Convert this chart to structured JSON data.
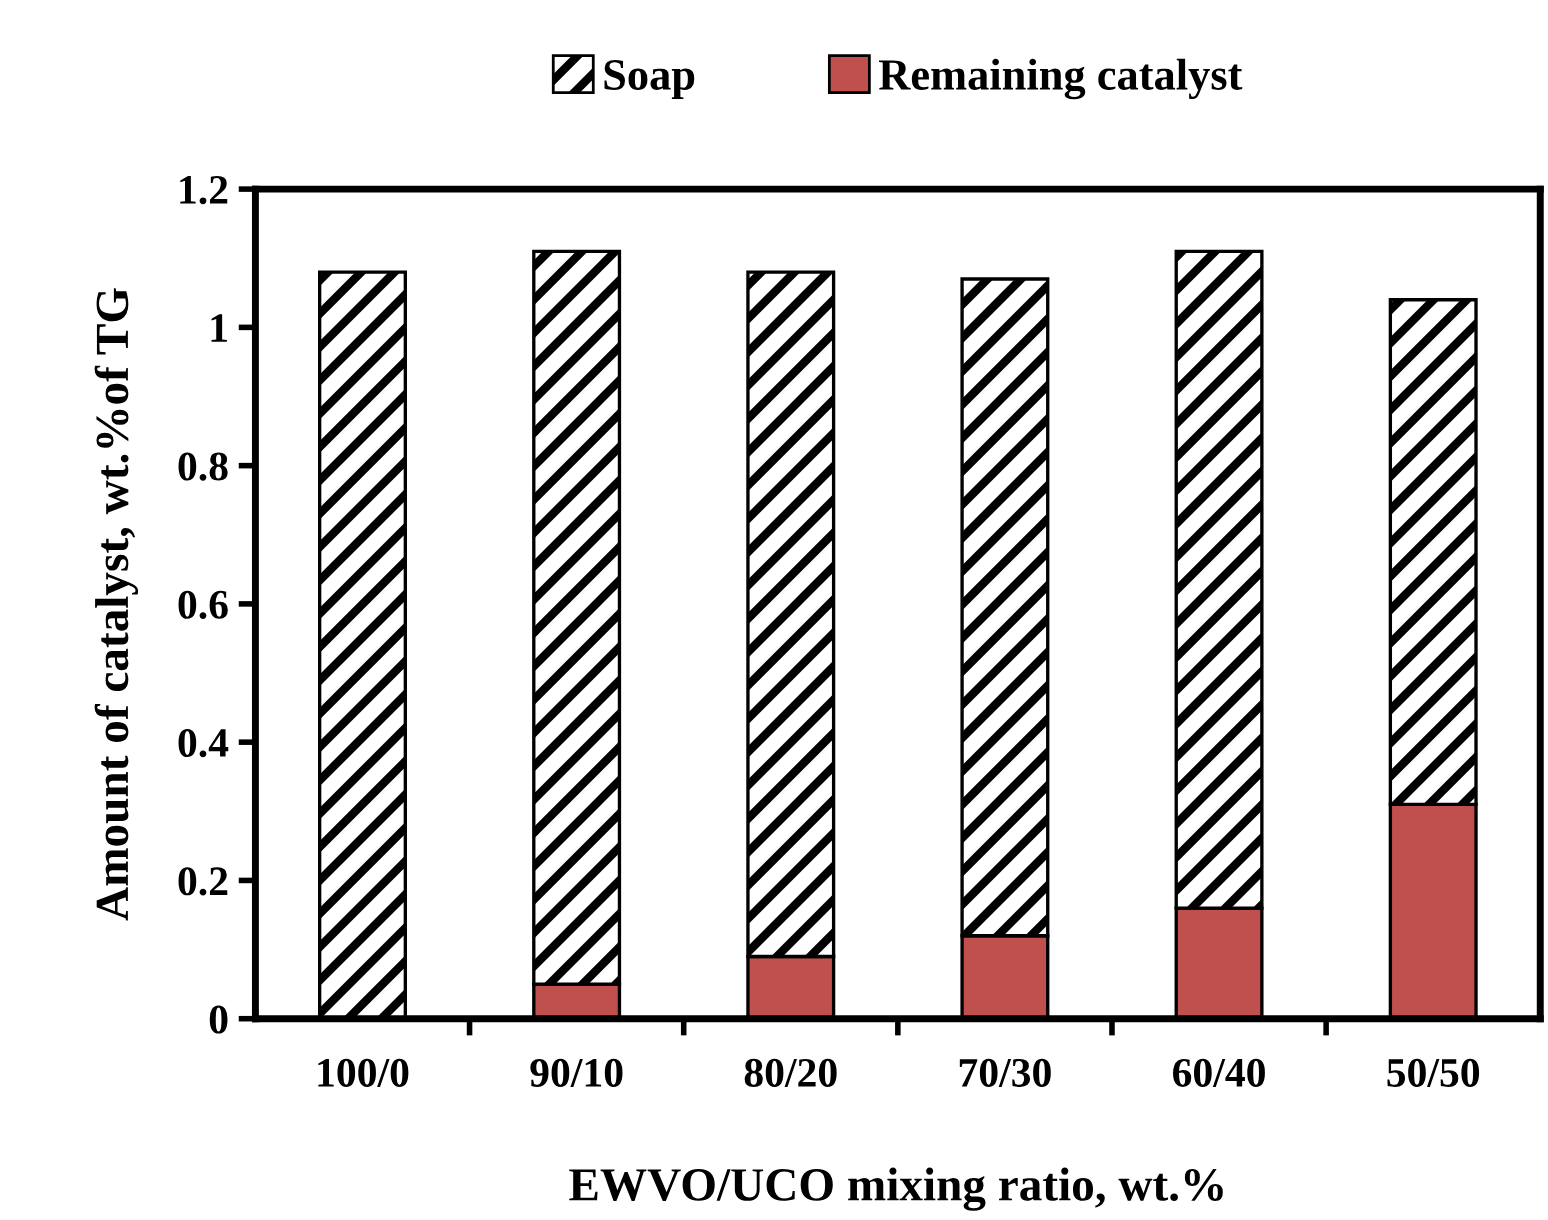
{
  "chart_data": {
    "type": "bar",
    "stacked": true,
    "xlabel": "EWVO/UCO mixing ratio, wt.%",
    "ylabel": "Amount of catalyst, wt.%of TG",
    "categories": [
      "100/0",
      "90/10",
      "80/20",
      "70/30",
      "60/40",
      "50/50"
    ],
    "series": [
      {
        "name": "Remaining catalyst",
        "color": "#c0504d",
        "values": [
          0,
          0.05,
          0.09,
          0.12,
          0.16,
          0.31
        ]
      },
      {
        "name": "Soap",
        "color": "#000000",
        "values": [
          1.08,
          1.06,
          0.99,
          0.95,
          0.95,
          0.73
        ]
      }
    ],
    "ylim": [
      0,
      1.2
    ],
    "yticks": [
      0,
      0.2,
      0.4,
      0.6,
      0.8,
      1,
      1.2
    ],
    "legend": "top",
    "grid": false
  }
}
